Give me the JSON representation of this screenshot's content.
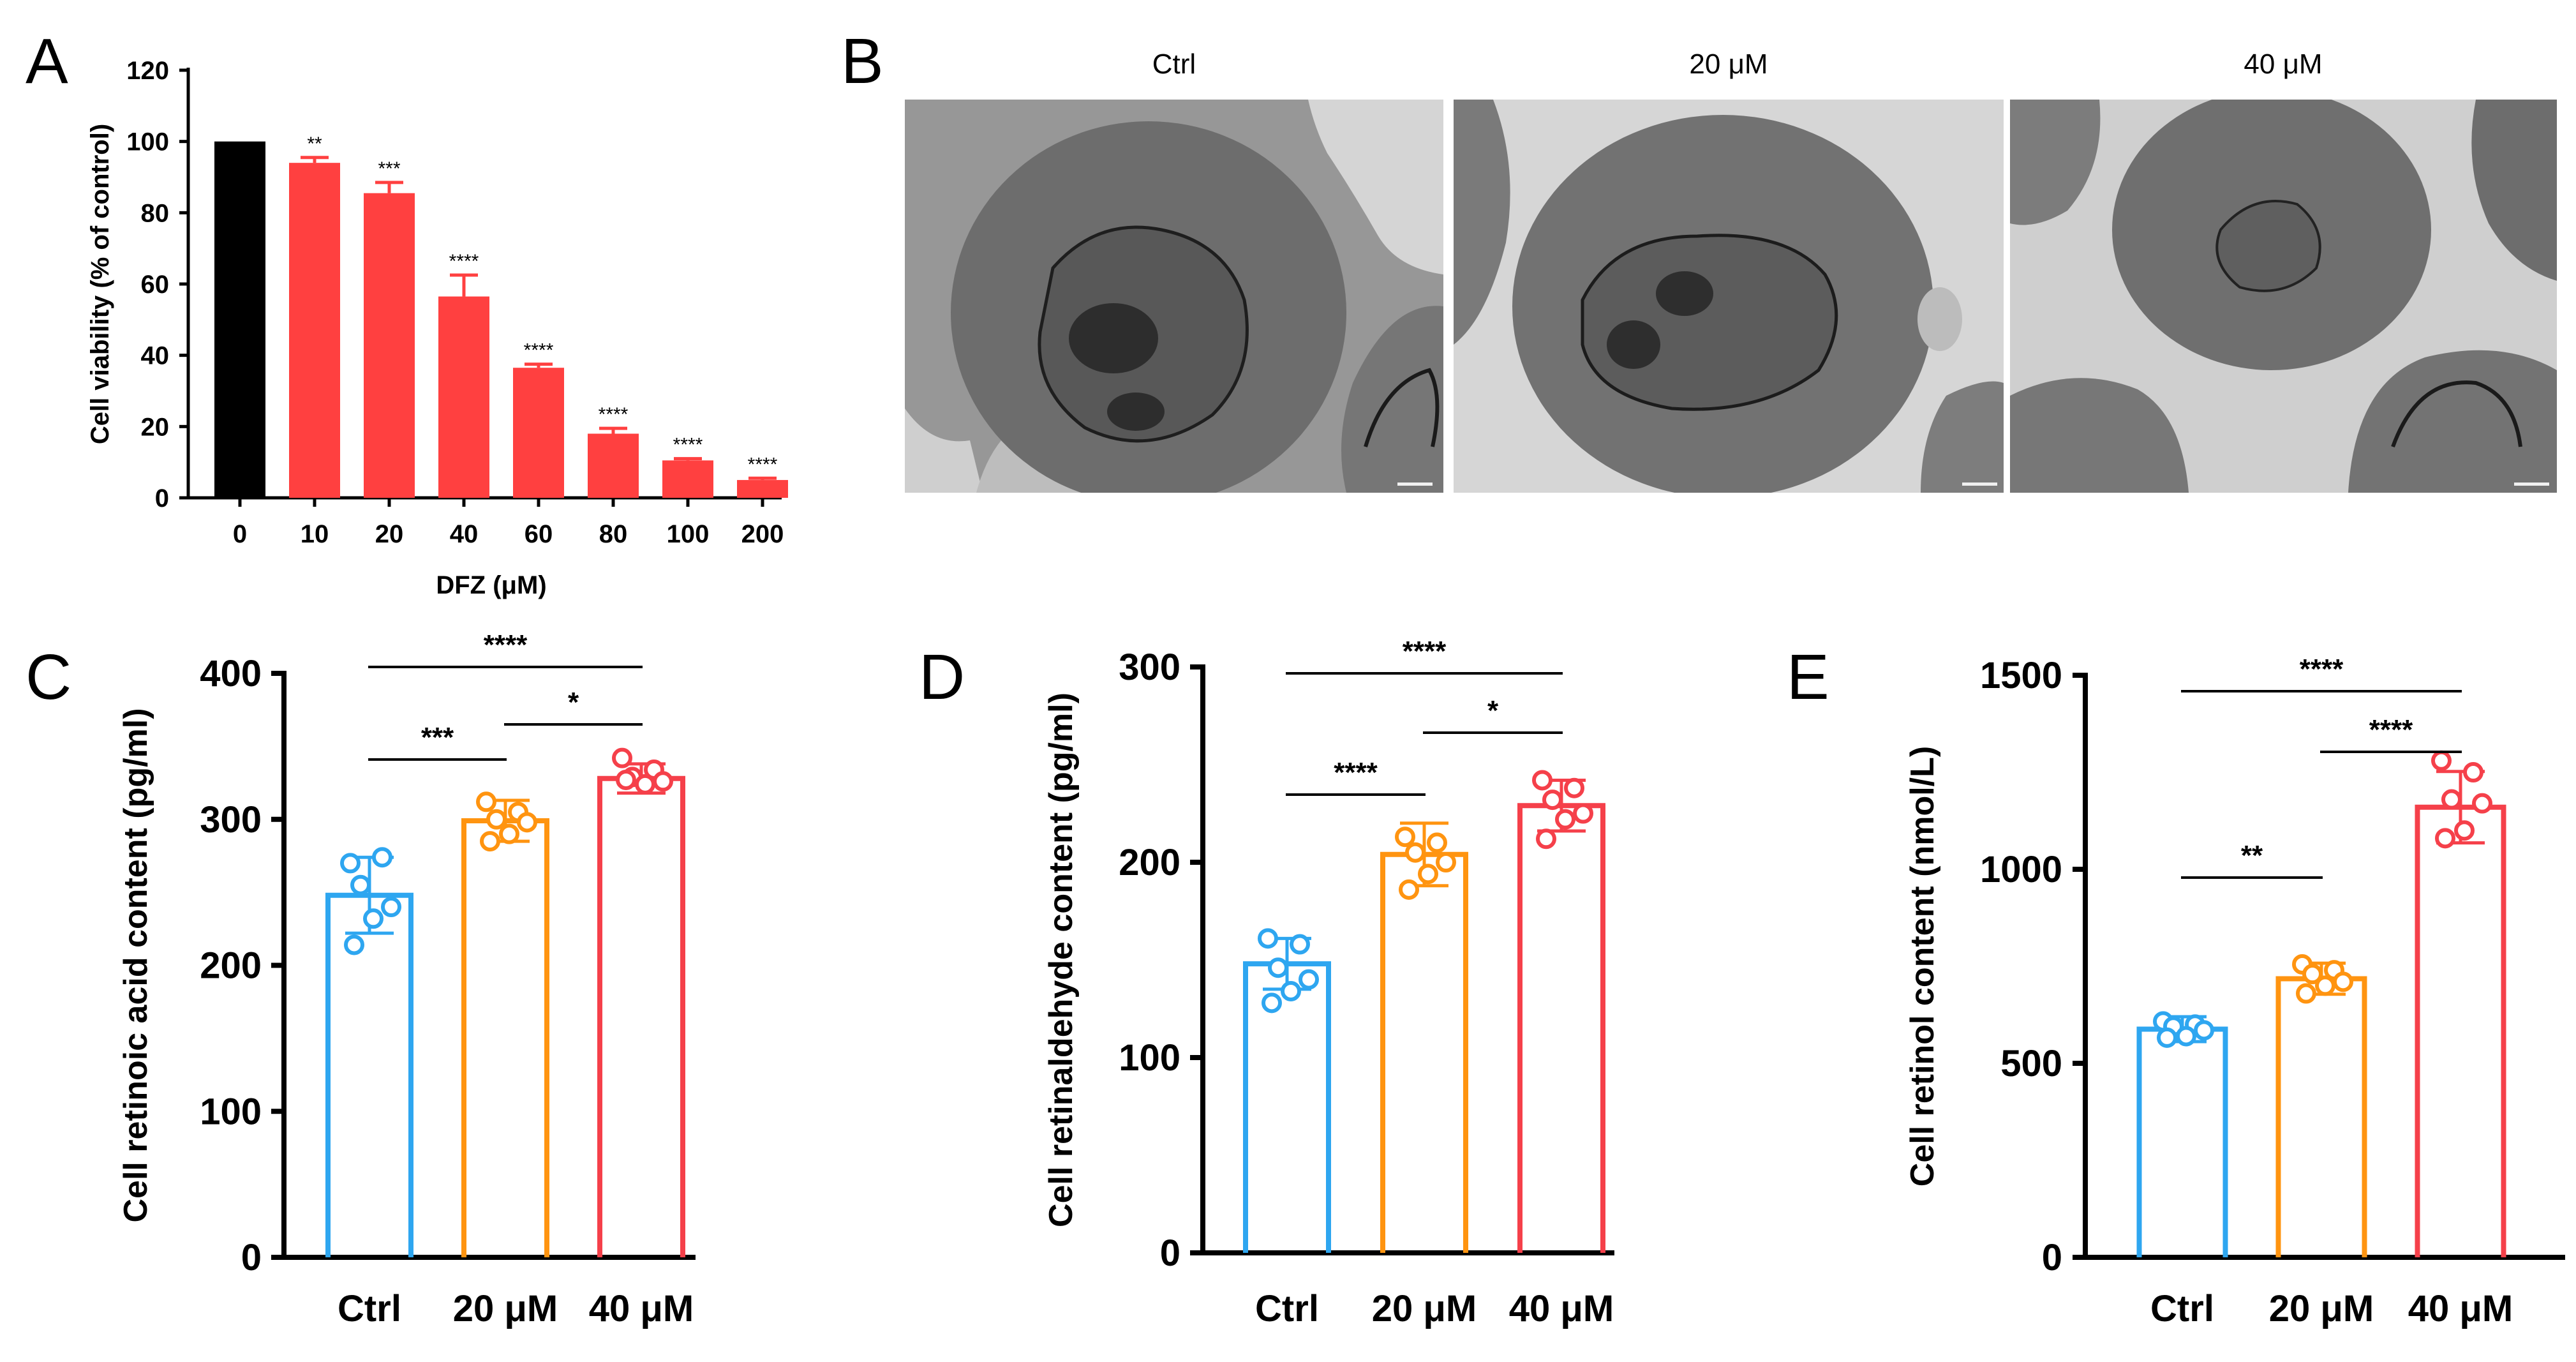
{
  "panels": {
    "A": "A",
    "B": "B",
    "C": "C",
    "D": "D",
    "E": "E"
  },
  "panel_b": {
    "type": "electron-micrograph-images",
    "labels": [
      "Ctrl",
      "20 μM",
      "40 μM"
    ],
    "colors": {
      "background": "#9a9a9a",
      "cell": "#6b6b6b",
      "nucleus": "#4f4f4f",
      "chromatin": "#2a2a2a",
      "space": "#d9d9d9"
    }
  },
  "chart_data": [
    {
      "id": "A",
      "type": "bar",
      "title": "",
      "xlabel": "DFZ (μM)",
      "ylabel": "Cell viability (% of control)",
      "ylim": [
        0,
        120
      ],
      "yticks": [
        0,
        20,
        40,
        60,
        80,
        100,
        120
      ],
      "categories": [
        "0",
        "10",
        "20",
        "40",
        "60",
        "80",
        "100",
        "200"
      ],
      "values": [
        100,
        94,
        85.5,
        56.5,
        36.5,
        18,
        10.5,
        5
      ],
      "errors": [
        0,
        1.5,
        3,
        6,
        1,
        1.5,
        0.5,
        0.5
      ],
      "significance": [
        "",
        "**",
        "***",
        "****",
        "****",
        "****",
        "****",
        "****"
      ],
      "colors": [
        "#000000",
        "#ff4040",
        "#ff4040",
        "#ff4040",
        "#ff4040",
        "#ff4040",
        "#ff4040",
        "#ff4040"
      ]
    },
    {
      "id": "C",
      "type": "bar",
      "xlabel": "",
      "ylabel": "Cell retinoic acid content (pg/ml)",
      "ylim": [
        0,
        400
      ],
      "yticks": [
        0,
        100,
        200,
        300,
        400
      ],
      "categories": [
        "Ctrl",
        "20 μM",
        "40 μM"
      ],
      "values": [
        248,
        299,
        328
      ],
      "errors": [
        26,
        14,
        10
      ],
      "points": [
        [
          270,
          274,
          255,
          240,
          232,
          214
        ],
        [
          312,
          305,
          300,
          298,
          290,
          285
        ],
        [
          342,
          334,
          329,
          326,
          324,
          327
        ]
      ],
      "colors": [
        "#2ea6f0",
        "#ff9410",
        "#f5404a"
      ],
      "comparisons": [
        {
          "from": 0,
          "to": 2,
          "label": "****"
        },
        {
          "from": 1,
          "to": 2,
          "label": "*"
        },
        {
          "from": 0,
          "to": 1,
          "label": "***"
        }
      ]
    },
    {
      "id": "D",
      "type": "bar",
      "xlabel": "",
      "ylabel": "Cell retinaldehyde content (pg/ml)",
      "ylim": [
        0,
        300
      ],
      "yticks": [
        0,
        100,
        200,
        300
      ],
      "categories": [
        "Ctrl",
        "20 μM",
        "40 μM"
      ],
      "values": [
        148,
        204,
        229
      ],
      "errors": [
        13,
        16,
        13
      ],
      "points": [
        [
          161,
          158,
          146,
          140,
          134,
          128
        ],
        [
          213,
          210,
          205,
          200,
          194,
          186
        ],
        [
          242,
          238,
          232,
          225,
          222,
          212
        ]
      ],
      "colors": [
        "#2ea6f0",
        "#ff9410",
        "#f5404a"
      ],
      "comparisons": [
        {
          "from": 0,
          "to": 2,
          "label": "****"
        },
        {
          "from": 1,
          "to": 2,
          "label": "*"
        },
        {
          "from": 0,
          "to": 1,
          "label": "****"
        }
      ]
    },
    {
      "id": "E",
      "type": "bar",
      "xlabel": "",
      "ylabel": "Cell retinol  content (nmol/L)",
      "ylim": [
        0,
        1500
      ],
      "yticks": [
        0,
        500,
        1000,
        1500
      ],
      "categories": [
        "Ctrl",
        "20 μM",
        "40 μM"
      ],
      "values": [
        588,
        718,
        1160
      ],
      "errors": [
        32,
        40,
        92
      ],
      "points": [
        [
          608,
          600,
          595,
          585,
          570,
          566
        ],
        [
          755,
          740,
          730,
          710,
          700,
          680
        ],
        [
          1280,
          1250,
          1180,
          1170,
          1100,
          1080
        ]
      ],
      "colors": [
        "#2ea6f0",
        "#ff9410",
        "#f5404a"
      ],
      "comparisons": [
        {
          "from": 0,
          "to": 2,
          "label": "****"
        },
        {
          "from": 1,
          "to": 2,
          "label": "****"
        },
        {
          "from": 0,
          "to": 1,
          "label": "**"
        }
      ]
    }
  ]
}
